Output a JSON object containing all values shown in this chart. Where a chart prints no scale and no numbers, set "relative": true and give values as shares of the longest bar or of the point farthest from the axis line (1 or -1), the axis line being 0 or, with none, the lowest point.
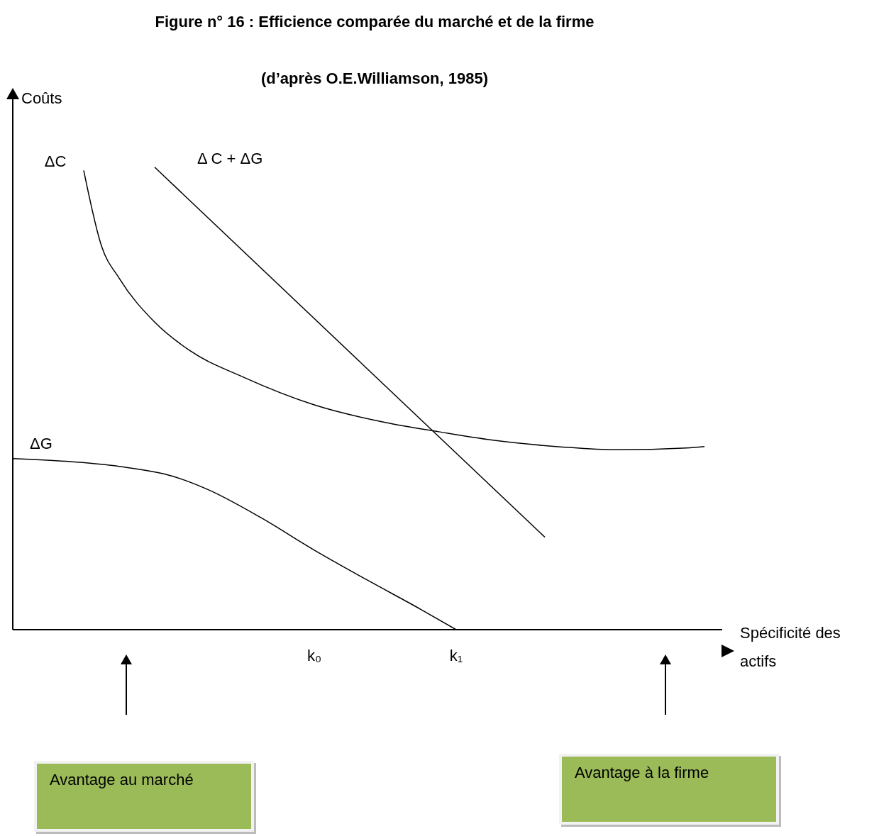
{
  "chart_data": {
    "type": "line",
    "title": "Figure n° 16 : Efficience comparée du marché et de la firme",
    "subtitle": "(d’après O.E.Williamson, 1985)",
    "ylabel": "Coûts",
    "xlabel": "Spécificité des actifs",
    "relative": true,
    "grid": false,
    "legend": false,
    "marker": "none",
    "line_style": "solid",
    "categories": [
      null,
      null,
      null,
      null,
      null,
      null,
      null,
      null,
      null,
      null,
      null,
      null,
      null,
      null,
      null,
      null,
      null,
      "k₀",
      null,
      null,
      null,
      null,
      null,
      null,
      null,
      "k₁",
      null,
      null,
      null,
      null,
      null,
      null,
      null,
      null,
      null,
      null,
      null,
      null,
      null,
      null,
      null
    ],
    "series": [
      {
        "name": "ΔC",
        "color": "#000000",
        "values": [
          null,
          null,
          null,
          null,
          0.993,
          0.83,
          0.76,
          null,
          0.665,
          null,
          0.603,
          null,
          null,
          0.546,
          null,
          null,
          null,
          0.486,
          null,
          null,
          null,
          0.448,
          null,
          null,
          0.428,
          null,
          null,
          0.41,
          null,
          null,
          null,
          0.395,
          null,
          null,
          0.389,
          null,
          null,
          null,
          0.393,
          0.396,
          null
        ]
      },
      {
        "name": "Δ C + ΔG",
        "color": "#000000",
        "values": [
          null,
          null,
          null,
          null,
          null,
          null,
          null,
          null,
          1,
          null,
          null,
          null,
          null,
          null,
          null,
          null,
          null,
          null,
          null,
          null,
          null,
          null,
          null,
          null,
          null,
          null,
          null,
          null,
          null,
          null,
          0.2,
          null,
          null,
          null,
          null,
          null,
          null,
          null,
          null,
          null,
          null
        ]
      },
      {
        "name": "ΔG",
        "color": "#000000",
        "values": [
          0.37,
          null,
          null,
          0.364,
          null,
          null,
          0.353,
          null,
          null,
          0.332,
          null,
          0.303,
          null,
          null,
          0.242,
          null,
          null,
          0.172,
          null,
          null,
          0.107,
          null,
          null,
          0.044,
          null,
          0,
          null,
          null,
          null,
          null,
          null,
          null,
          null,
          null,
          null,
          null,
          null,
          null,
          null,
          null,
          null
        ]
      }
    ],
    "annotations": [
      "Avantage au marché",
      "Avantage à la firme"
    ]
  }
}
